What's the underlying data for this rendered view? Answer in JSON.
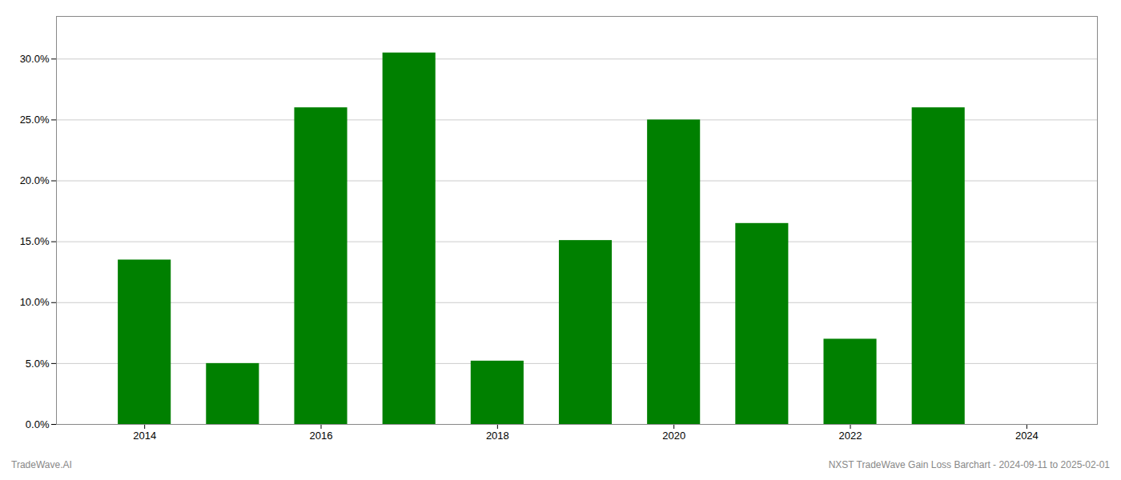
{
  "chart_data": {
    "type": "bar",
    "x": [
      2014,
      2015,
      2016,
      2017,
      2018,
      2019,
      2020,
      2021,
      2022,
      2023
    ],
    "values": [
      0.135,
      0.05,
      0.26,
      0.305,
      0.052,
      0.151,
      0.25,
      0.165,
      0.07,
      0.26
    ],
    "color": "#008000",
    "xlim": [
      2013.0,
      2024.8
    ],
    "xticks": [
      2014,
      2016,
      2018,
      2020,
      2022,
      2024
    ],
    "ylim": [
      0,
      0.335
    ],
    "yticks": [
      {
        "value": 0.0,
        "label": "0.0%"
      },
      {
        "value": 0.05,
        "label": "5.0%"
      },
      {
        "value": 0.1,
        "label": "10.0%"
      },
      {
        "value": 0.15,
        "label": "15.0%"
      },
      {
        "value": 0.2,
        "label": "20.0%"
      },
      {
        "value": 0.25,
        "label": "25.0%"
      },
      {
        "value": 0.3,
        "label": "30.0%"
      }
    ],
    "grid": true,
    "annotations": [
      "TradeWave.AI",
      "NXST TradeWave Gain Loss Barchart - 2024-09-11 to 2025-02-01"
    ]
  }
}
